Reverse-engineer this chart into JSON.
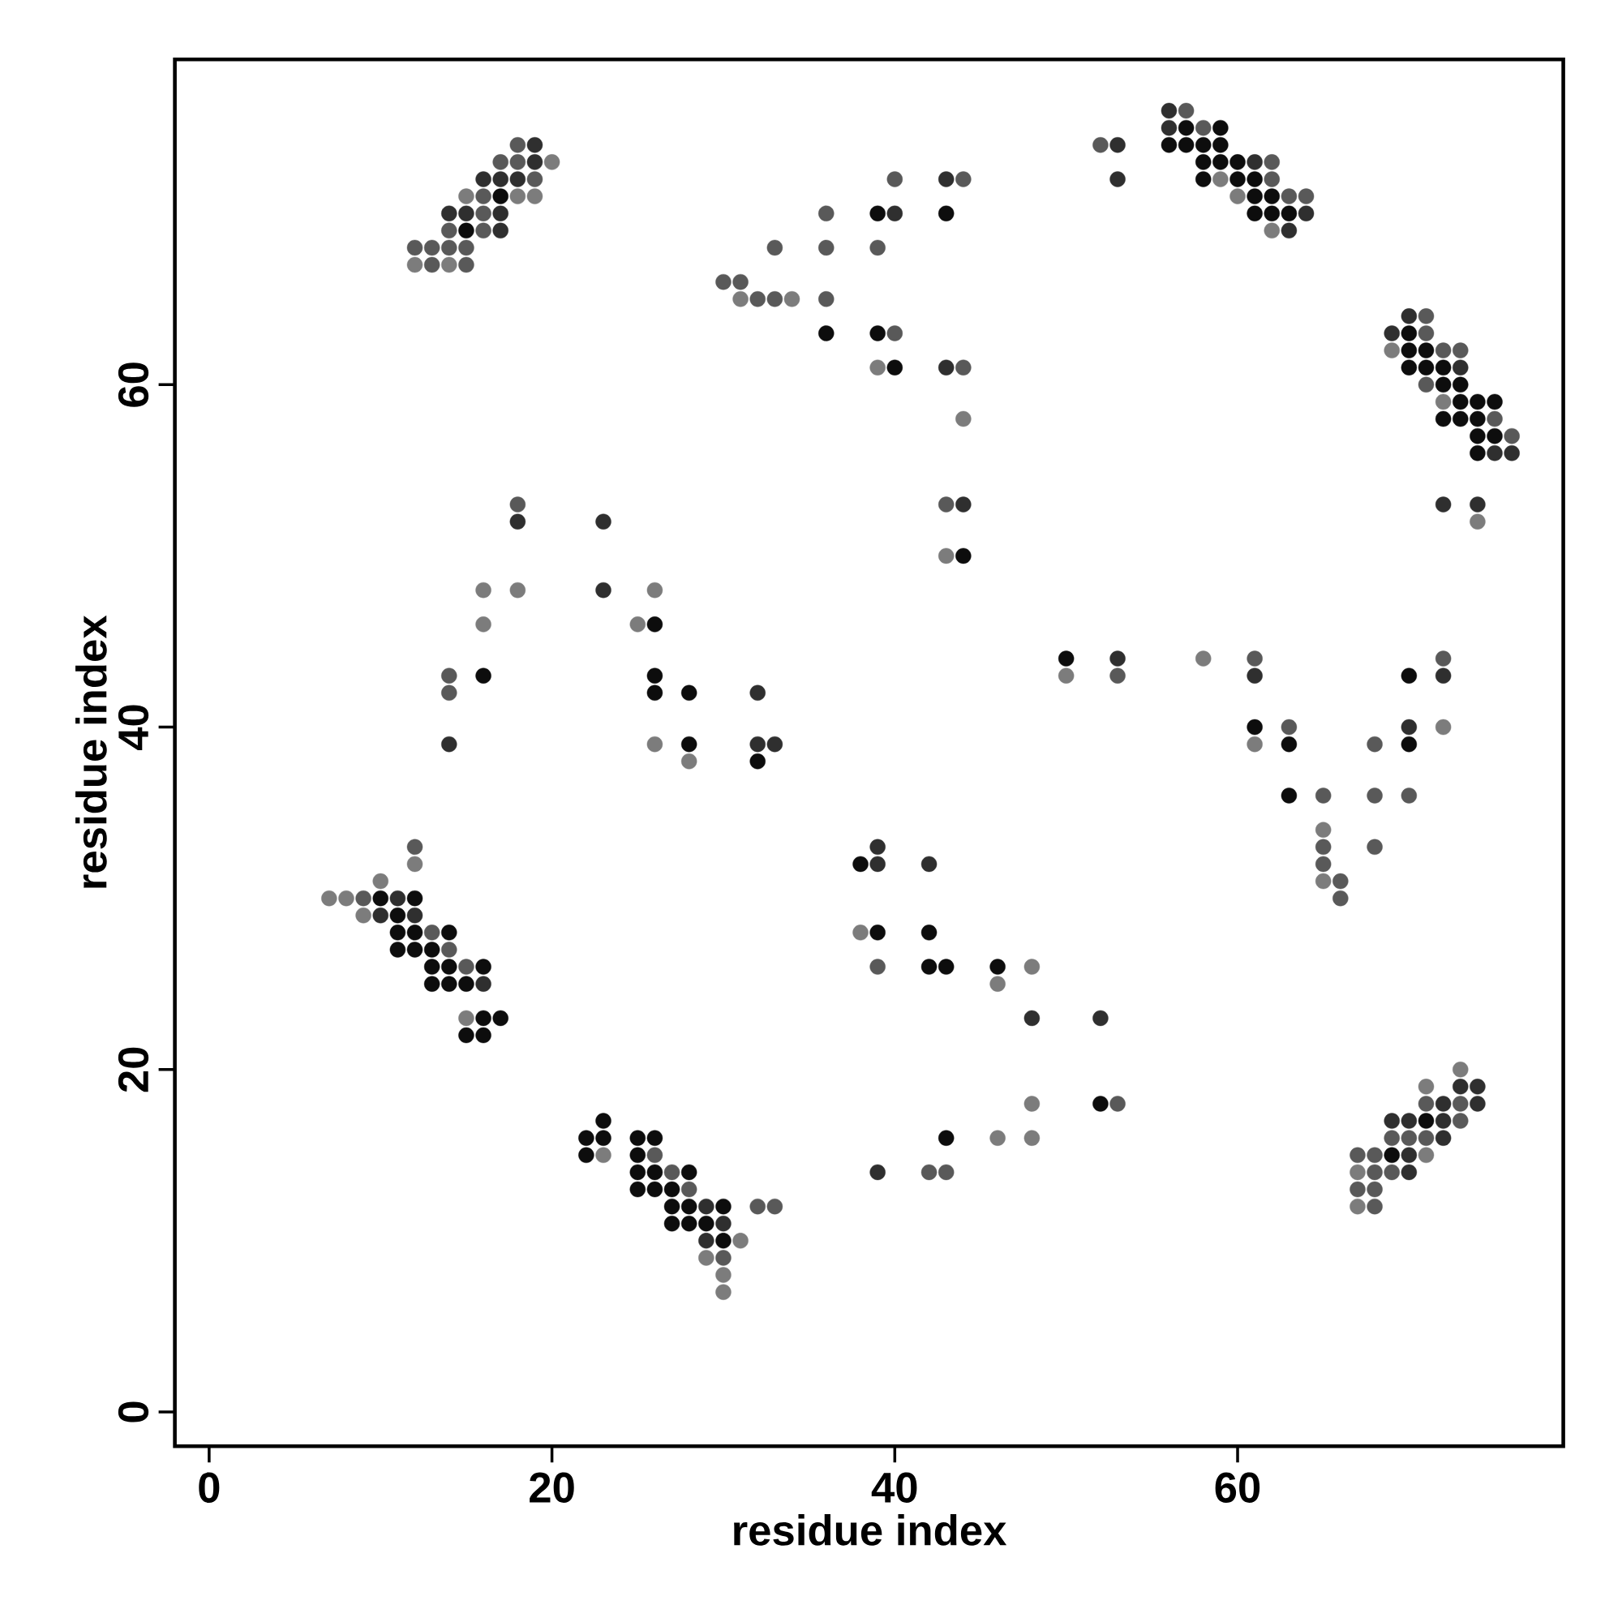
{
  "chart_data": {
    "type": "scatter",
    "xlabel": "residue index",
    "ylabel": "residue index",
    "xlim": [
      -2,
      79
    ],
    "ylim": [
      -2,
      79
    ],
    "xticks": [
      0,
      20,
      40,
      60
    ],
    "yticks": [
      0,
      20,
      40,
      60
    ],
    "series": [
      {
        "color": "#0d0d0d",
        "x": [
          57,
          59,
          56,
          57,
          58,
          59,
          58,
          59,
          60,
          58,
          60,
          61,
          17,
          61,
          62,
          39,
          43,
          61,
          62,
          63,
          15,
          36,
          39,
          70,
          70,
          71,
          40,
          70,
          71,
          72,
          72,
          73,
          73,
          74,
          75,
          72,
          73,
          74,
          74,
          75,
          74,
          44,
          26,
          50,
          16,
          26,
          70,
          26,
          28,
          61,
          28,
          63,
          70,
          32,
          63,
          38,
          10,
          12,
          11,
          11,
          12,
          14,
          39,
          42,
          11,
          12,
          13,
          13,
          14,
          16,
          42,
          43,
          46,
          13,
          14,
          15,
          16,
          17,
          15,
          16,
          52,
          23,
          71,
          22,
          23,
          25,
          26,
          43,
          22,
          25,
          69,
          25,
          26,
          28,
          25,
          26,
          27,
          27,
          28,
          30,
          27,
          28,
          29,
          30
        ],
        "values": [
          75,
          75,
          74,
          74,
          74,
          74,
          73,
          73,
          73,
          72,
          72,
          72,
          71,
          71,
          71,
          70,
          70,
          70,
          70,
          70,
          69,
          63,
          63,
          63,
          62,
          62,
          61,
          61,
          61,
          61,
          60,
          60,
          59,
          59,
          59,
          58,
          58,
          58,
          57,
          57,
          56,
          50,
          46,
          44,
          43,
          43,
          43,
          42,
          42,
          40,
          39,
          39,
          39,
          38,
          36,
          32,
          30,
          30,
          29,
          28,
          28,
          28,
          28,
          28,
          27,
          27,
          27,
          26,
          26,
          26,
          26,
          26,
          26,
          25,
          25,
          25,
          23,
          23,
          22,
          22,
          18,
          17,
          17,
          16,
          16,
          16,
          16,
          16,
          15,
          15,
          15,
          14,
          14,
          14,
          13,
          13,
          13,
          12,
          12,
          12,
          11,
          11,
          11,
          10
        ]
      },
      {
        "color": "#2f2f2f",
        "x": [
          56,
          56,
          19,
          53,
          19,
          61,
          16,
          17,
          18,
          43,
          53,
          14,
          15,
          17,
          40,
          64,
          17,
          63,
          70,
          69,
          43,
          73,
          75,
          76,
          44,
          72,
          74,
          18,
          23,
          23,
          53,
          61,
          72,
          32,
          70,
          14,
          32,
          33,
          39,
          39,
          42,
          11,
          10,
          12,
          16,
          48,
          52,
          73,
          74,
          72,
          74,
          69,
          70,
          72,
          72,
          70,
          39,
          70,
          29,
          30,
          29
        ],
        "values": [
          76,
          75,
          74,
          74,
          73,
          73,
          72,
          72,
          72,
          72,
          72,
          70,
          70,
          70,
          70,
          70,
          69,
          69,
          64,
          63,
          61,
          61,
          56,
          56,
          53,
          53,
          53,
          52,
          52,
          48,
          44,
          43,
          43,
          42,
          40,
          39,
          39,
          39,
          33,
          32,
          32,
          30,
          29,
          29,
          25,
          23,
          23,
          19,
          19,
          18,
          18,
          17,
          17,
          17,
          16,
          15,
          14,
          14,
          12,
          11,
          10
        ]
      },
      {
        "color": "#595959",
        "x": [
          57,
          58,
          18,
          52,
          17,
          18,
          62,
          19,
          40,
          44,
          62,
          16,
          63,
          64,
          16,
          36,
          14,
          16,
          12,
          13,
          14,
          15,
          33,
          36,
          39,
          13,
          15,
          30,
          31,
          32,
          33,
          36,
          71,
          40,
          71,
          72,
          73,
          44,
          71,
          75,
          76,
          18,
          43,
          61,
          72,
          14,
          53,
          14,
          63,
          68,
          65,
          68,
          70,
          12,
          65,
          68,
          65,
          66,
          9,
          66,
          13,
          14,
          15,
          39,
          53,
          71,
          73,
          73,
          69,
          70,
          71,
          26,
          67,
          68,
          27,
          42,
          43,
          68,
          69,
          28,
          67,
          68,
          32,
          33,
          68,
          30
        ],
        "values": [
          76,
          75,
          74,
          74,
          73,
          73,
          73,
          72,
          72,
          72,
          72,
          71,
          71,
          71,
          70,
          70,
          69,
          69,
          68,
          68,
          68,
          68,
          68,
          68,
          68,
          67,
          67,
          66,
          66,
          65,
          65,
          65,
          64,
          63,
          63,
          62,
          62,
          61,
          60,
          58,
          57,
          53,
          53,
          44,
          44,
          43,
          43,
          42,
          40,
          39,
          36,
          36,
          36,
          33,
          33,
          33,
          32,
          31,
          30,
          30,
          28,
          27,
          26,
          26,
          18,
          18,
          18,
          17,
          16,
          16,
          16,
          15,
          15,
          15,
          14,
          14,
          14,
          14,
          14,
          13,
          13,
          13,
          12,
          12,
          12,
          9
        ]
      },
      {
        "color": "#7c7c7c",
        "x": [
          20,
          59,
          15,
          18,
          19,
          60,
          62,
          12,
          14,
          31,
          34,
          69,
          39,
          72,
          44,
          74,
          43,
          16,
          18,
          26,
          16,
          25,
          58,
          50,
          72,
          26,
          61,
          28,
          65,
          12,
          10,
          65,
          7,
          8,
          9,
          38,
          48,
          46,
          15,
          73,
          71,
          48,
          46,
          48,
          23,
          71,
          67,
          67,
          31,
          29,
          30,
          30
        ],
        "values": [
          73,
          72,
          71,
          71,
          71,
          71,
          69,
          67,
          67,
          65,
          65,
          62,
          61,
          59,
          58,
          52,
          50,
          48,
          48,
          48,
          46,
          46,
          44,
          43,
          40,
          39,
          39,
          38,
          34,
          32,
          31,
          31,
          30,
          30,
          29,
          28,
          26,
          25,
          23,
          20,
          19,
          18,
          16,
          16,
          15,
          15,
          14,
          12,
          10,
          9,
          8,
          7
        ]
      }
    ]
  }
}
